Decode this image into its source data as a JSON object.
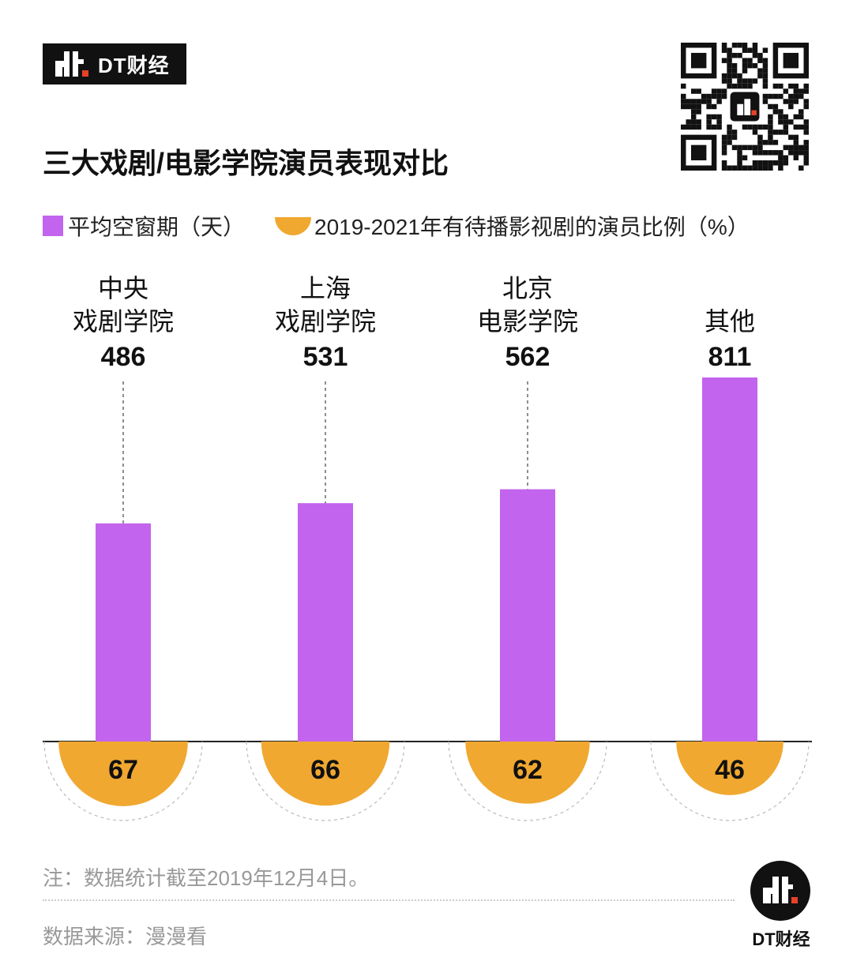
{
  "brand": {
    "logo_text": "DT财经",
    "badge_text": "DT财经"
  },
  "title": "三大戏剧/电影学院演员表现对比",
  "legend": [
    {
      "label": "平均空窗期（天）",
      "color": "#c264ed",
      "shape": "square"
    },
    {
      "label": "2019-2021年有待播影视剧的演员比例（%）",
      "color": "#f0a830",
      "shape": "semicircle"
    }
  ],
  "chart_data": {
    "type": "bar",
    "categories": [
      [
        "中央",
        "戏剧学院"
      ],
      [
        "上海",
        "戏剧学院"
      ],
      [
        "北京",
        "电影学院"
      ],
      [
        "其他"
      ]
    ],
    "series": [
      {
        "name": "平均空窗期（天）",
        "values": [
          486,
          531,
          562,
          811
        ],
        "color": "#c264ed"
      },
      {
        "name": "2019-2021年有待播影视剧的演员比例（%）",
        "values": [
          67,
          66,
          62,
          46
        ],
        "color": "#f0a830"
      }
    ],
    "ylim": [
      0,
      811
    ],
    "grid": false
  },
  "footer": {
    "note": "注：数据统计截至2019年12月4日。",
    "source": "数据来源：漫漫看"
  }
}
